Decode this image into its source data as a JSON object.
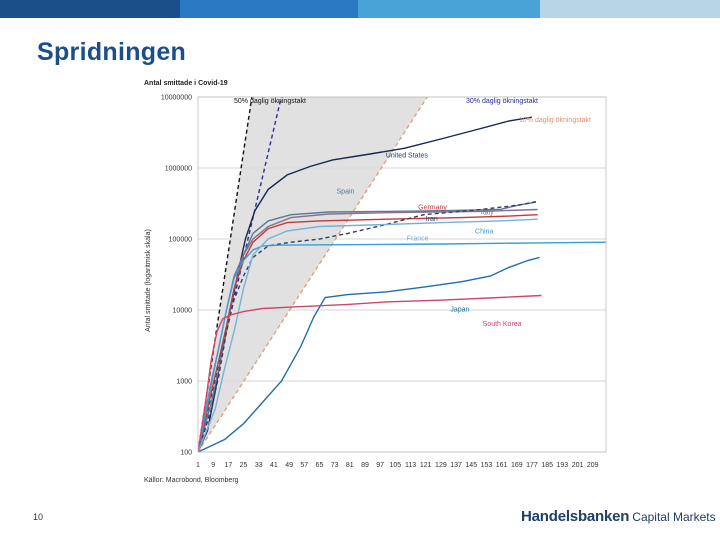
{
  "slide": {
    "title": "Spridningen",
    "page_number": "10",
    "logo_brand": "Handelsbanken",
    "logo_sub": "Capital Markets",
    "top_bar_colors": [
      "#1b4f8a",
      "#2a79c2",
      "#4aa3d6",
      "#b8d5e8"
    ]
  },
  "chart_data": {
    "type": "line",
    "title": "Antal smittade i Covid-19",
    "ylabel": "Antal smittade (logaritmisk skala)",
    "xlabel": "",
    "source": "Källor: Macrobond, Bloomberg",
    "xlim": [
      1,
      216
    ],
    "ylim": [
      100,
      10000000
    ],
    "yscale": "log",
    "grid": "horizontal",
    "x_ticks": [
      "1",
      "9",
      "17",
      "25",
      "33",
      "41",
      "49",
      "57",
      "65",
      "73",
      "81",
      "89",
      "97",
      "105",
      "113",
      "121",
      "129",
      "137",
      "145",
      "153",
      "161",
      "169",
      "177",
      "185",
      "193",
      "201",
      "209"
    ],
    "y_ticks": [
      "100",
      "1000",
      "10000",
      "100000",
      "1000000",
      "10000000"
    ],
    "y_tick_values": [
      100,
      1000,
      10000,
      100000,
      1000000,
      10000000
    ],
    "reference_lines": [
      {
        "label": "50% daglig ökningstakt",
        "rate": 0.5,
        "style": "dashed",
        "color": "#111111"
      },
      {
        "label": "30% daglig ökningstakt",
        "rate": 0.3,
        "style": "dashed",
        "color": "#2a2a9a"
      },
      {
        "label": "10% daglig ökningstakt",
        "rate": 0.1,
        "style": "dashed",
        "color": "#e0a080"
      }
    ],
    "series": [
      {
        "name": "United States",
        "color": "#14294f",
        "points": [
          [
            1,
            100
          ],
          [
            6,
            200
          ],
          [
            10,
            700
          ],
          [
            14,
            3000
          ],
          [
            18,
            10000
          ],
          [
            22,
            33000
          ],
          [
            26,
            100000
          ],
          [
            31,
            250000
          ],
          [
            38,
            500000
          ],
          [
            48,
            800000
          ],
          [
            60,
            1050000
          ],
          [
            72,
            1300000
          ],
          [
            90,
            1550000
          ],
          [
            110,
            1900000
          ],
          [
            130,
            2600000
          ],
          [
            150,
            3600000
          ],
          [
            165,
            4600000
          ],
          [
            177,
            5200000
          ]
        ]
      },
      {
        "name": "Spain",
        "color": "#5a7a94",
        "points": [
          [
            1,
            100
          ],
          [
            8,
            500
          ],
          [
            12,
            1500
          ],
          [
            16,
            5000
          ],
          [
            20,
            20000
          ],
          [
            25,
            60000
          ],
          [
            30,
            120000
          ],
          [
            38,
            180000
          ],
          [
            50,
            220000
          ],
          [
            70,
            240000
          ],
          [
            100,
            245000
          ],
          [
            130,
            250000
          ],
          [
            160,
            260000
          ],
          [
            170,
            300000
          ],
          [
            179,
            330000
          ]
        ]
      },
      {
        "name": "Germany",
        "color": "#c23a3a",
        "points": [
          [
            1,
            100
          ],
          [
            8,
            700
          ],
          [
            12,
            2000
          ],
          [
            16,
            6000
          ],
          [
            20,
            20000
          ],
          [
            25,
            50000
          ],
          [
            30,
            90000
          ],
          [
            38,
            140000
          ],
          [
            48,
            170000
          ],
          [
            65,
            180000
          ],
          [
            100,
            190000
          ],
          [
            140,
            200000
          ],
          [
            165,
            210000
          ],
          [
            180,
            220000
          ]
        ]
      },
      {
        "name": "Italy",
        "color": "#8a7090",
        "points": [
          [
            1,
            100
          ],
          [
            8,
            1000
          ],
          [
            12,
            3000
          ],
          [
            16,
            10000
          ],
          [
            20,
            30000
          ],
          [
            25,
            60000
          ],
          [
            30,
            100000
          ],
          [
            38,
            150000
          ],
          [
            50,
            200000
          ],
          [
            70,
            225000
          ],
          [
            100,
            235000
          ],
          [
            150,
            245000
          ],
          [
            180,
            260000
          ]
        ]
      },
      {
        "name": "Iran",
        "color": "#2c3e6e",
        "dash": "4,3",
        "points": [
          [
            1,
            100
          ],
          [
            8,
            400
          ],
          [
            12,
            1200
          ],
          [
            16,
            5000
          ],
          [
            20,
            14000
          ],
          [
            25,
            30000
          ],
          [
            30,
            55000
          ],
          [
            38,
            80000
          ],
          [
            50,
            90000
          ],
          [
            65,
            100000
          ],
          [
            80,
            120000
          ],
          [
            100,
            160000
          ],
          [
            120,
            220000
          ],
          [
            150,
            260000
          ],
          [
            170,
            300000
          ],
          [
            180,
            340000
          ]
        ]
      },
      {
        "name": "China",
        "color": "#3aa0d0",
        "points": [
          [
            1,
            100
          ],
          [
            8,
            900
          ],
          [
            12,
            3000
          ],
          [
            16,
            10000
          ],
          [
            20,
            28000
          ],
          [
            25,
            50000
          ],
          [
            30,
            70000
          ],
          [
            35,
            80000
          ],
          [
            45,
            82000
          ],
          [
            80,
            83000
          ],
          [
            130,
            85000
          ],
          [
            180,
            88000
          ],
          [
            216,
            90000
          ]
        ]
      },
      {
        "name": "France",
        "color": "#7ab0d6",
        "points": [
          [
            1,
            100
          ],
          [
            10,
            400
          ],
          [
            15,
            1500
          ],
          [
            20,
            5000
          ],
          [
            25,
            20000
          ],
          [
            30,
            60000
          ],
          [
            38,
            100000
          ],
          [
            48,
            130000
          ],
          [
            65,
            150000
          ],
          [
            100,
            160000
          ],
          [
            130,
            170000
          ],
          [
            160,
            180000
          ],
          [
            180,
            190000
          ]
        ]
      },
      {
        "name": "Japan",
        "color": "#1f6fa8",
        "points": [
          [
            1,
            100
          ],
          [
            15,
            150
          ],
          [
            25,
            250
          ],
          [
            35,
            500
          ],
          [
            45,
            1000
          ],
          [
            55,
            3000
          ],
          [
            62,
            8000
          ],
          [
            68,
            15000
          ],
          [
            80,
            16500
          ],
          [
            100,
            18000
          ],
          [
            120,
            21000
          ],
          [
            140,
            25000
          ],
          [
            155,
            30000
          ],
          [
            165,
            40000
          ],
          [
            175,
            50000
          ],
          [
            181,
            55000
          ]
        ]
      },
      {
        "name": "South Korea",
        "color": "#d0456a",
        "points": [
          [
            1,
            100
          ],
          [
            5,
            500
          ],
          [
            8,
            2000
          ],
          [
            11,
            5000
          ],
          [
            14,
            7500
          ],
          [
            18,
            8500
          ],
          [
            25,
            9500
          ],
          [
            35,
            10500
          ],
          [
            50,
            11000
          ],
          [
            80,
            12000
          ],
          [
            100,
            13000
          ],
          [
            130,
            13800
          ],
          [
            160,
            15000
          ],
          [
            182,
            16000
          ]
        ]
      }
    ],
    "labels": [
      {
        "text": "United States",
        "x": 100,
        "y": 1400000,
        "color": "#1f3f70"
      },
      {
        "text": "Spain",
        "x": 74,
        "y": 440000,
        "color": "#5a7a94"
      },
      {
        "text": "Germany",
        "x": 117,
        "y": 260000,
        "color": "#c23a3a"
      },
      {
        "text": "Italy",
        "x": 150,
        "y": 220000,
        "color": "#8a7090"
      },
      {
        "text": "Iran",
        "x": 121,
        "y": 180000,
        "color": "#2c3e6e"
      },
      {
        "text": "China",
        "x": 147,
        "y": 120000,
        "color": "#3aa0d0"
      },
      {
        "text": "France",
        "x": 111,
        "y": 95000,
        "color": "#7ab0d6"
      },
      {
        "text": "Japan",
        "x": 134,
        "y": 9500,
        "color": "#1f6fa8"
      },
      {
        "text": "South Korea",
        "x": 151,
        "y": 6000,
        "color": "#d0456a"
      }
    ]
  }
}
